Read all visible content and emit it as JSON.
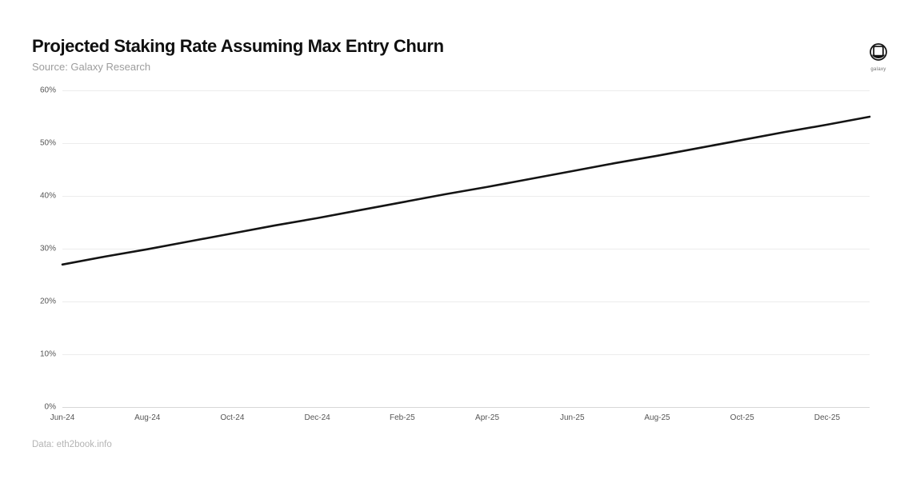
{
  "header": {
    "title": "Projected Staking Rate Assuming Max Entry Churn",
    "subtitle": "Source: Galaxy Research",
    "logo_text": "galaxy"
  },
  "footer": {
    "data_credit": "Data: eth2book.info"
  },
  "colors": {
    "line": "#141414",
    "grid": "#ececec",
    "axis_zero": "#d7d7d7",
    "tick_label": "#565656",
    "title": "#101010",
    "subtitle": "#9d9d9d",
    "footer": "#b4b4b4",
    "background": "#ffffff"
  },
  "chart_data": {
    "type": "line",
    "title": "Projected Staking Rate Assuming Max Entry Churn",
    "xlabel": "",
    "ylabel": "",
    "ylim": [
      0,
      60
    ],
    "y_ticks": [
      0,
      10,
      20,
      30,
      40,
      50,
      60
    ],
    "y_tick_labels": [
      "0%",
      "10%",
      "20%",
      "30%",
      "40%",
      "50%",
      "60%"
    ],
    "x": [
      "Jun-24",
      "Jul-24",
      "Aug-24",
      "Sep-24",
      "Oct-24",
      "Nov-24",
      "Dec-24",
      "Jan-25",
      "Feb-25",
      "Mar-25",
      "Apr-25",
      "May-25",
      "Jun-25",
      "Jul-25",
      "Aug-25",
      "Sep-25",
      "Oct-25",
      "Nov-25",
      "Dec-25",
      "Jan-26"
    ],
    "x_tick_labels": [
      "Jun-24",
      "Aug-24",
      "Oct-24",
      "Dec-24",
      "Feb-25",
      "Apr-25",
      "Jun-25",
      "Aug-25",
      "Oct-25",
      "Dec-25"
    ],
    "x_tick_indices": [
      0,
      2,
      4,
      6,
      8,
      10,
      12,
      14,
      16,
      18
    ],
    "series": [
      {
        "name": "Projected staking rate",
        "values": [
          27.0,
          28.5,
          29.9,
          31.4,
          32.9,
          34.4,
          35.8,
          37.3,
          38.8,
          40.3,
          41.7,
          43.2,
          44.7,
          46.2,
          47.6,
          49.1,
          50.6,
          52.1,
          53.5,
          55.0
        ]
      }
    ],
    "grid": "horizontal",
    "legend": "none"
  }
}
